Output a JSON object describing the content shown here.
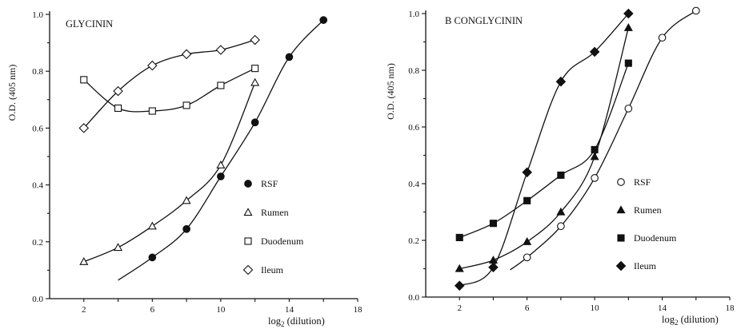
{
  "chart_data": [
    {
      "type": "line",
      "title": "GLYCININ",
      "xlabel_prefix": "log",
      "xlabel_sub": "2",
      "xlabel_suffix": " (dilution)",
      "ylabel": "O.D. (405 nm)",
      "xlim": [
        0,
        18
      ],
      "ylim": [
        0,
        1.0
      ],
      "xticks": [
        2,
        6,
        10,
        14,
        18
      ],
      "xtick_labels": [
        "2",
        "6",
        "10",
        "14",
        "18"
      ],
      "yticks": [
        0,
        0.2,
        0.4,
        0.6,
        0.8,
        1.0
      ],
      "ytick_labels": [
        "0.0",
        "0.2",
        "0.4",
        "0.6",
        "0.8",
        "1.0"
      ],
      "series": [
        {
          "name": "RSF",
          "marker": "filled-circle",
          "x": [
            6,
            8,
            10,
            12,
            14,
            16
          ],
          "y": [
            0.145,
            0.245,
            0.43,
            0.62,
            0.85,
            0.98
          ],
          "line_start_x": 4
        },
        {
          "name": "Rumen",
          "marker": "open-triangle",
          "x": [
            2,
            4,
            6,
            8,
            10,
            12
          ],
          "y": [
            0.13,
            0.18,
            0.255,
            0.345,
            0.47,
            0.76
          ]
        },
        {
          "name": "Duodenum",
          "marker": "open-square",
          "x": [
            2,
            4,
            6,
            8,
            10,
            12
          ],
          "y": [
            0.77,
            0.67,
            0.66,
            0.68,
            0.75,
            0.81
          ]
        },
        {
          "name": "Ileum",
          "marker": "open-diamond",
          "x": [
            2,
            4,
            6,
            8,
            10,
            12
          ],
          "y": [
            0.6,
            0.73,
            0.82,
            0.86,
            0.875,
            0.91
          ]
        }
      ],
      "legend": "right-middle"
    },
    {
      "type": "line",
      "title": "B CONGLYCININ",
      "xlabel_prefix": "log",
      "xlabel_sub": "2",
      "xlabel_suffix": " (dilution)",
      "ylabel": "O.D. (405 nm)",
      "xlim": [
        0,
        18
      ],
      "ylim": [
        0,
        1.0
      ],
      "xticks": [
        2,
        6,
        10,
        14,
        18
      ],
      "xtick_labels": [
        "2",
        "6",
        "10",
        "14",
        "18"
      ],
      "yticks": [
        0,
        0.2,
        0.4,
        0.6,
        0.8,
        1.0
      ],
      "ytick_labels": [
        "0.0",
        "0.2",
        "0.4",
        "0.6",
        "0.8",
        "1.0"
      ],
      "series": [
        {
          "name": "RSF",
          "marker": "open-circle",
          "x": [
            6,
            8,
            10,
            12,
            14,
            16
          ],
          "y": [
            0.14,
            0.25,
            0.42,
            0.665,
            0.915,
            1.01
          ],
          "line_start_x": 5
        },
        {
          "name": "Rumen",
          "marker": "filled-triangle",
          "x": [
            2,
            4,
            6,
            8,
            10,
            12
          ],
          "y": [
            0.1,
            0.13,
            0.195,
            0.3,
            0.495,
            0.95
          ]
        },
        {
          "name": "Duodenum",
          "marker": "filled-square",
          "x": [
            2,
            4,
            6,
            8,
            10,
            12
          ],
          "y": [
            0.21,
            0.26,
            0.34,
            0.43,
            0.52,
            0.825
          ]
        },
        {
          "name": "Ileum",
          "marker": "filled-diamond",
          "x": [
            2,
            4,
            6,
            8,
            10,
            12
          ],
          "y": [
            0.04,
            0.105,
            0.44,
            0.76,
            0.865,
            1.0
          ]
        }
      ],
      "legend": "right-middle"
    }
  ]
}
